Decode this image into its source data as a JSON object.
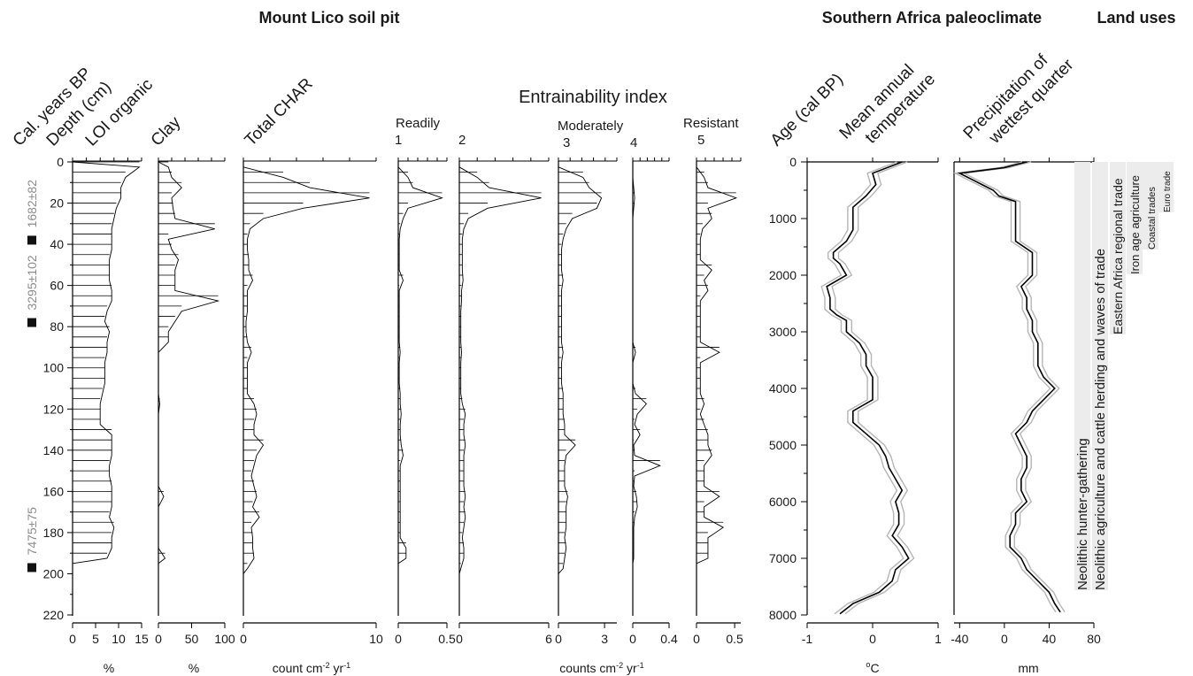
{
  "titles": {
    "soil_pit": "Mount Lico soil pit",
    "paleoclimate": "Southern Africa paleoclimate",
    "land_uses": "Land uses",
    "entrainability": "Entrainability index"
  },
  "column_labels": {
    "cal_years": "Cal. years BP",
    "depth": "Depth (cm)",
    "loi": "LOI organic",
    "clay": "Clay",
    "char": "Total CHAR",
    "readily": "Readily",
    "moderately": "Moderately",
    "resistant": "Resistant",
    "age": "Age (cal BP)",
    "temp1": "Mean annual",
    "temp2": "temperature",
    "precip1": "Precipitation of",
    "precip2": "wettest quarter"
  },
  "class_numbers": [
    "1",
    "2",
    "3",
    "4",
    "5"
  ],
  "units": {
    "loi": "%",
    "clay": "%",
    "char": "count cm",
    "char_exp1": "-2",
    "char_mid": " yr",
    "char_exp2": "-1",
    "counts": "counts cm",
    "counts_exp1": "-2",
    "counts_mid": " yr",
    "counts_exp2": "-1",
    "temp_deg": "o",
    "temp": "C",
    "precip": "mm"
  },
  "dates": [
    {
      "label": "1682±82",
      "depth": 38
    },
    {
      "label": "3295±102",
      "depth": 78
    },
    {
      "label": "7475±75",
      "depth": 197
    }
  ],
  "land_uses": [
    "Neolithic hunter-gathering",
    "Neolithic agriculture and cattle herding and waves of trade",
    "Eastern Africa regional trade",
    "Iron age agriculture",
    "Coastal trades",
    "Euro trade"
  ],
  "colors": {
    "axis": "#000000",
    "envelope": "#b5b5b5",
    "band": "#ececec",
    "date_text": "#8c8c8c"
  },
  "chart_data": [
    {
      "type": "bar",
      "name_ref": "LOI organic",
      "orientation": "horizontal",
      "depth_axis": {
        "label": "Depth (cm)",
        "ticks": [
          0,
          20,
          40,
          60,
          80,
          100,
          120,
          140,
          160,
          180,
          200,
          220
        ],
        "range": [
          0,
          220
        ]
      },
      "xlim": [
        0,
        15
      ],
      "xticks": [
        0,
        5,
        10,
        15
      ],
      "depth": [
        0,
        5,
        10,
        15,
        20,
        25,
        30,
        35,
        40,
        45,
        50,
        55,
        60,
        65,
        70,
        75,
        80,
        85,
        90,
        95,
        100,
        105,
        110,
        115,
        120,
        125,
        130,
        135,
        140,
        145,
        150,
        155,
        160,
        165,
        170,
        175,
        180,
        185,
        190
      ],
      "values": [
        14.5,
        11.5,
        10.5,
        10.5,
        9.5,
        9.0,
        8.5,
        8.5,
        8.5,
        8.0,
        8.0,
        8.0,
        8.5,
        8.5,
        7.5,
        7.0,
        8.0,
        7.5,
        7.5,
        7.0,
        7.0,
        7.0,
        6.5,
        6.0,
        6.0,
        6.0,
        8.5,
        8.5,
        8.5,
        8.0,
        8.0,
        8.5,
        8.5,
        8.5,
        8.0,
        9.0,
        8.5,
        8.5,
        7.5
      ]
    },
    {
      "type": "bar",
      "name_ref": "Clay",
      "orientation": "horizontal",
      "xlim": [
        0,
        100
      ],
      "xticks": [
        0,
        50,
        100
      ],
      "depth": [
        0,
        5,
        10,
        15,
        20,
        25,
        30,
        35,
        40,
        45,
        50,
        55,
        60,
        65,
        70,
        75,
        80,
        85,
        90,
        95,
        100,
        105,
        110,
        115,
        120,
        125,
        130,
        135,
        140,
        145,
        150,
        155,
        160,
        165,
        170,
        175,
        180,
        185,
        190
      ],
      "values": [
        15,
        20,
        35,
        20,
        22,
        25,
        85,
        15,
        20,
        30,
        25,
        25,
        25,
        90,
        35,
        25,
        15,
        15,
        0,
        0,
        0,
        0,
        0,
        2,
        0,
        0,
        0,
        0,
        0,
        0,
        0,
        0,
        8,
        0,
        0,
        0,
        0,
        0,
        10
      ]
    },
    {
      "type": "bar",
      "name_ref": "Total CHAR",
      "orientation": "horizontal",
      "xlim": [
        0,
        10
      ],
      "xticks": [
        0,
        10
      ],
      "depth": [
        0,
        5,
        10,
        15,
        20,
        25,
        30,
        35,
        40,
        45,
        50,
        55,
        60,
        65,
        70,
        75,
        80,
        85,
        90,
        95,
        100,
        105,
        110,
        115,
        120,
        125,
        130,
        135,
        140,
        145,
        150,
        155,
        160,
        165,
        170,
        175,
        180,
        185,
        190,
        195
      ],
      "values": [
        0,
        3.0,
        5.0,
        9.5,
        4.5,
        1.5,
        0.5,
        0.3,
        0.3,
        0.4,
        0.4,
        0.7,
        0.3,
        0.3,
        0.3,
        0.2,
        0.2,
        0.3,
        0.6,
        0.3,
        0.3,
        0.3,
        0.3,
        0.8,
        1.0,
        0.8,
        0.8,
        1.5,
        1.0,
        0.8,
        0.6,
        0.8,
        1.0,
        0.7,
        1.2,
        0.6,
        0.7,
        0.7,
        0.8,
        0.3
      ]
    },
    {
      "type": "bar",
      "name_ref": "Class 1 (Readily)",
      "orientation": "horizontal",
      "xlim": [
        0,
        0.5
      ],
      "xticks": [
        0,
        0.5
      ],
      "depth": [
        0,
        5,
        10,
        15,
        20,
        25,
        30,
        35,
        40,
        45,
        50,
        55,
        60,
        65,
        70,
        75,
        80,
        85,
        90,
        95,
        100,
        105,
        110,
        115,
        120,
        125,
        130,
        135,
        140,
        145,
        150,
        155,
        160,
        165,
        170,
        175,
        180,
        185,
        190
      ],
      "values": [
        0,
        0.1,
        0.15,
        0.45,
        0.1,
        0.05,
        0.02,
        0.01,
        0.01,
        0.01,
        0.01,
        0.05,
        0.01,
        0.01,
        0.01,
        0.01,
        0.01,
        0.01,
        0.02,
        0.01,
        0.01,
        0.01,
        0.02,
        0.02,
        0.03,
        0.02,
        0.02,
        0.03,
        0.05,
        0.02,
        0.02,
        0.02,
        0.02,
        0.02,
        0.02,
        0.02,
        0.02,
        0.08,
        0.08
      ]
    },
    {
      "type": "bar",
      "name_ref": "Class 2",
      "orientation": "horizontal",
      "xlim": [
        0,
        6
      ],
      "xticks": [
        0,
        6
      ],
      "depth": [
        0,
        5,
        10,
        15,
        20,
        25,
        30,
        35,
        40,
        45,
        50,
        55,
        60,
        65,
        70,
        75,
        80,
        85,
        90,
        95,
        100,
        105,
        110,
        115,
        120,
        125,
        130,
        135,
        140,
        145,
        150,
        155,
        160,
        165,
        170,
        175,
        180,
        185,
        190,
        195
      ],
      "values": [
        0,
        1.2,
        2.0,
        5.5,
        1.9,
        0.6,
        0.3,
        0.2,
        0.2,
        0.2,
        0.2,
        0.25,
        0.15,
        0.15,
        0.1,
        0.1,
        0.1,
        0.1,
        0.15,
        0.1,
        0.1,
        0.1,
        0.1,
        0.2,
        0.4,
        0.3,
        0.3,
        0.4,
        0.3,
        0.3,
        0.3,
        0.3,
        0.4,
        0.3,
        0.4,
        0.3,
        0.2,
        0.3,
        0.3,
        0.1
      ]
    },
    {
      "type": "bar",
      "name_ref": "Class 3 (Moderately)",
      "orientation": "horizontal",
      "xlim": [
        0,
        3.8
      ],
      "xticks": [
        0,
        3
      ],
      "depth": [
        0,
        5,
        10,
        15,
        20,
        25,
        30,
        35,
        40,
        45,
        50,
        55,
        60,
        65,
        70,
        75,
        80,
        85,
        90,
        95,
        100,
        105,
        110,
        115,
        120,
        125,
        130,
        135,
        140,
        145,
        150,
        155,
        160,
        165,
        170,
        175,
        180,
        185,
        190,
        195
      ],
      "values": [
        0,
        1.6,
        2.0,
        2.8,
        2.5,
        0.9,
        0.5,
        0.3,
        0.2,
        0.2,
        0.2,
        0.3,
        0.2,
        0.2,
        0.2,
        0.2,
        0.2,
        0.2,
        0.3,
        0.2,
        0.2,
        0.2,
        0.3,
        0.3,
        0.3,
        0.4,
        0.4,
        1.1,
        0.5,
        0.4,
        0.4,
        0.4,
        0.6,
        0.5,
        0.5,
        0.5,
        0.4,
        0.5,
        0.4,
        0.3
      ]
    },
    {
      "type": "bar",
      "name_ref": "Class 4",
      "orientation": "horizontal",
      "xlim": [
        0,
        0.4
      ],
      "xticks": [
        0,
        0.4
      ],
      "depth": [
        0,
        5,
        10,
        15,
        20,
        25,
        30,
        35,
        40,
        45,
        50,
        55,
        60,
        65,
        70,
        75,
        80,
        85,
        90,
        95,
        100,
        105,
        110,
        115,
        120,
        125,
        130,
        135,
        140,
        145,
        150,
        155,
        160,
        165,
        170,
        175,
        180,
        185,
        190
      ],
      "values": [
        0,
        0,
        0.01,
        0.02,
        0.01,
        0,
        0,
        0,
        0,
        0,
        0,
        0,
        0,
        0,
        0,
        0,
        0,
        0,
        0.03,
        0,
        0,
        0,
        0.03,
        0.15,
        0.05,
        0.02,
        0.08,
        0.01,
        0.02,
        0.3,
        0.02,
        0.01,
        0.04,
        0.05,
        0.02,
        0.01,
        0.01,
        0.01,
        0.01
      ]
    },
    {
      "type": "bar",
      "name_ref": "Class 5 (Resistant)",
      "orientation": "horizontal",
      "xlim": [
        0,
        0.58
      ],
      "xticks": [
        0,
        0.5
      ],
      "depth": [
        0,
        5,
        10,
        15,
        20,
        25,
        30,
        35,
        40,
        45,
        50,
        55,
        60,
        65,
        70,
        75,
        80,
        85,
        90,
        95,
        100,
        105,
        110,
        115,
        120,
        125,
        130,
        135,
        140,
        145,
        150,
        155,
        160,
        165,
        170,
        175,
        180,
        185,
        190
      ],
      "values": [
        0,
        0.1,
        0.15,
        0.52,
        0.15,
        0.2,
        0.08,
        0.05,
        0.05,
        0.05,
        0.2,
        0.1,
        0.15,
        0.05,
        0.05,
        0.05,
        0.05,
        0.05,
        0.3,
        0.05,
        0.05,
        0.05,
        0.05,
        0.1,
        0.05,
        0.1,
        0.15,
        0.15,
        0.2,
        0.1,
        0.1,
        0.1,
        0.3,
        0.1,
        0.1,
        0.35,
        0.15,
        0.15,
        0.15
      ]
    },
    {
      "type": "line",
      "name_ref": "Mean annual temperature",
      "y_axis": {
        "label": "Age (cal BP)",
        "range": [
          0,
          8000
        ],
        "ticks": [
          0,
          1000,
          2000,
          3000,
          4000,
          5000,
          6000,
          7000,
          8000
        ]
      },
      "xlim": [
        -1,
        1
      ],
      "xticks": [
        -1,
        0,
        1
      ],
      "age": [
        0,
        200,
        400,
        600,
        800,
        1000,
        1200,
        1400,
        1600,
        1700,
        1800,
        2000,
        2200,
        2400,
        2600,
        2700,
        2800,
        3000,
        3200,
        3400,
        3600,
        3800,
        4000,
        4200,
        4400,
        4600,
        4800,
        5000,
        5200,
        5400,
        5600,
        5800,
        6000,
        6200,
        6400,
        6600,
        6800,
        7000,
        7200,
        7400,
        7600,
        7800,
        7980
      ],
      "values": [
        0.45,
        0.0,
        0.05,
        -0.1,
        -0.3,
        -0.3,
        -0.3,
        -0.4,
        -0.6,
        -0.6,
        -0.5,
        -0.4,
        -0.7,
        -0.65,
        -0.65,
        -0.55,
        -0.4,
        -0.4,
        -0.2,
        -0.1,
        -0.1,
        0.0,
        0.0,
        0.0,
        -0.3,
        -0.3,
        -0.1,
        0.1,
        0.2,
        0.25,
        0.35,
        0.45,
        0.35,
        0.4,
        0.4,
        0.3,
        0.45,
        0.55,
        0.35,
        0.3,
        0.1,
        -0.3,
        -0.5
      ]
    },
    {
      "type": "line",
      "name_ref": "Precipitation of wettest quarter",
      "xlim": [
        -45,
        80
      ],
      "xticks": [
        -40,
        0,
        40,
        80
      ],
      "age": [
        0,
        100,
        200,
        300,
        400,
        500,
        600,
        700,
        800,
        900,
        1000,
        1200,
        1400,
        1600,
        1800,
        2000,
        2200,
        2400,
        2600,
        2800,
        3000,
        3200,
        3400,
        3600,
        3800,
        4000,
        4200,
        4400,
        4600,
        4800,
        5000,
        5200,
        5400,
        5600,
        5800,
        6000,
        6200,
        6400,
        6600,
        6800,
        7000,
        7200,
        7400,
        7600,
        7800,
        7950
      ],
      "values": [
        20,
        0,
        -40,
        -30,
        -20,
        -10,
        -5,
        10,
        10,
        10,
        10,
        10,
        10,
        25,
        25,
        25,
        15,
        20,
        20,
        25,
        25,
        30,
        30,
        30,
        35,
        45,
        35,
        25,
        20,
        10,
        15,
        20,
        20,
        15,
        15,
        20,
        10,
        10,
        5,
        5,
        15,
        20,
        30,
        40,
        45,
        50
      ]
    }
  ]
}
